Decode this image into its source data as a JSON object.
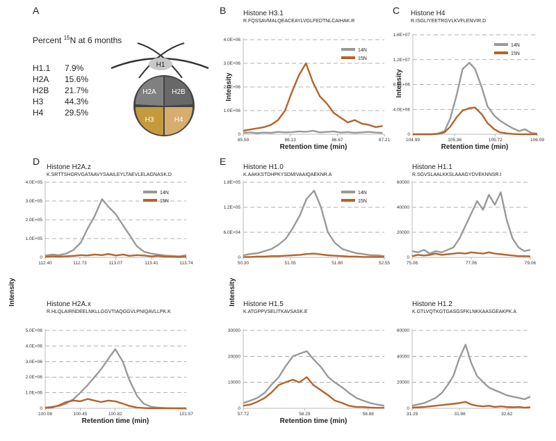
{
  "panel_a": {
    "panel": "A",
    "title": [
      "Percent ",
      "15",
      "N at 6 months"
    ],
    "rows": [
      [
        "H1.1",
        "7.9%"
      ],
      [
        "H2A",
        "15.6%"
      ],
      [
        "H2B",
        "21.7%"
      ],
      [
        "H3",
        "44.3%"
      ],
      [
        "H4",
        "29.5%"
      ]
    ],
    "diagram_labels": [
      "H1",
      "H2A",
      "H2B",
      "H3",
      "H4"
    ]
  },
  "chart_data": [
    {
      "type": "line",
      "panel": "B",
      "title": "Histone H3.1",
      "subtitle": "R.FQSSAVMALQEACEAYLVGLFEDTNLCAIHAK.R",
      "xlabel": "Retention time (min)",
      "ylabel": "Intensity",
      "legend": "upper right",
      "grid": true,
      "xlim": [
        85.59,
        87.21
      ],
      "xticks": [
        85.59,
        86.13,
        86.67,
        87.21
      ],
      "ylim": [
        0,
        4000000
      ],
      "yticks": [
        0,
        {
          "value": 1000000,
          "label": "1.0E+06"
        },
        {
          "value": 2000000,
          "label": "2.0E+06"
        },
        {
          "value": 3000000,
          "label": "3.0E+06"
        },
        {
          "value": 4000000,
          "label": "4.0E+06"
        }
      ],
      "x": [
        85.59,
        85.67,
        85.75,
        85.83,
        85.91,
        85.99,
        86.07,
        86.15,
        86.23,
        86.31,
        86.39,
        86.47,
        86.55,
        86.63,
        86.71,
        86.79,
        86.87,
        86.95,
        87.03,
        87.11,
        87.19
      ],
      "series": [
        {
          "name": "14N",
          "color": "#999999",
          "values": [
            60000,
            80000,
            50000,
            70000,
            60000,
            100000,
            80000,
            90000,
            120000,
            100000,
            150000,
            80000,
            100000,
            120000,
            70000,
            90000,
            60000,
            80000,
            100000,
            70000,
            60000
          ]
        },
        {
          "name": "15N",
          "color": "#b5622a",
          "values": [
            150000,
            200000,
            250000,
            300000,
            400000,
            600000,
            1000000,
            1800000,
            2500000,
            3000000,
            2200000,
            1600000,
            1300000,
            900000,
            700000,
            500000,
            600000,
            450000,
            400000,
            300000,
            350000
          ]
        }
      ]
    },
    {
      "type": "line",
      "panel": "C",
      "title": "Histone H4",
      "subtitle": "R.ISGLIYEETRGVLKVFLENVIR.D",
      "xlabel": "Retention time (min)",
      "ylabel": "Intensity",
      "legend": "upper right",
      "grid": true,
      "xlim": [
        104.99,
        106.09
      ],
      "xticks": [
        104.99,
        105.36,
        105.72,
        106.09
      ],
      "ylim": [
        0,
        16000000
      ],
      "yticks": [
        0,
        {
          "value": 4000000,
          "label": "4.0E+06"
        },
        {
          "value": 8000000,
          "label": "8.0E+06"
        },
        {
          "value": 12000000,
          "label": "1.2E+07"
        },
        {
          "value": 16000000,
          "label": "1.6E+07"
        }
      ],
      "x": [
        104.99,
        105.05,
        105.1,
        105.16,
        105.21,
        105.27,
        105.32,
        105.38,
        105.43,
        105.49,
        105.54,
        105.6,
        105.65,
        105.71,
        105.76,
        105.82,
        105.87,
        105.93,
        105.98,
        106.04,
        106.09
      ],
      "series": [
        {
          "name": "14N",
          "color": "#999999",
          "values": [
            0,
            0,
            0,
            0,
            100000,
            500000,
            2500000,
            6500000,
            10500000,
            11500000,
            10500000,
            7500000,
            4500000,
            3000000,
            2200000,
            1500000,
            1000000,
            500000,
            800000,
            200000,
            100000
          ]
        },
        {
          "name": "15N",
          "color": "#b5622a",
          "values": [
            0,
            0,
            0,
            0,
            50000,
            300000,
            1200000,
            2800000,
            3800000,
            4200000,
            4300000,
            3200000,
            1800000,
            800000,
            300000,
            150000,
            50000,
            0,
            0,
            0,
            0
          ]
        }
      ]
    },
    {
      "type": "line",
      "panel": "D",
      "title": "Histone H2A.z",
      "subtitle": "K.SRTTSHGRVGATAAVYSAAILEYLTAEVLELAGNASK.D",
      "ylabel": "Intensity",
      "legend": "upper right",
      "grid": true,
      "xlim": [
        112.4,
        113.74
      ],
      "xticks": [
        {
          "value": 112.4,
          "label": "112.40"
        },
        112.73,
        113.07,
        113.41,
        113.74
      ],
      "ylim": [
        0,
        400000
      ],
      "yticks": [
        0,
        {
          "value": 100000,
          "label": "1.0E+05"
        },
        {
          "value": 200000,
          "label": "2.0E+05"
        },
        {
          "value": 300000,
          "label": "3.0E+05"
        },
        {
          "value": 400000,
          "label": "4.0E+05"
        }
      ],
      "x": [
        112.4,
        112.47,
        112.53,
        112.6,
        112.67,
        112.74,
        112.8,
        112.87,
        112.94,
        113.0,
        113.07,
        113.14,
        113.2,
        113.27,
        113.34,
        113.41,
        113.47,
        113.54,
        113.61,
        113.67,
        113.74
      ],
      "series": [
        {
          "name": "14N",
          "color": "#999999",
          "values": [
            10000,
            15000,
            12000,
            20000,
            40000,
            80000,
            150000,
            220000,
            310000,
            270000,
            230000,
            170000,
            120000,
            60000,
            30000,
            20000,
            15000,
            10000,
            8000,
            5000,
            12000
          ]
        },
        {
          "name": "15N",
          "color": "#b5622a",
          "values": [
            3000,
            5000,
            4000,
            6000,
            8000,
            12000,
            10000,
            15000,
            12000,
            18000,
            10000,
            15000,
            8000,
            12000,
            10000,
            5000,
            8000,
            4000,
            3000,
            2000,
            3000
          ]
        }
      ]
    },
    {
      "type": "line",
      "title": "Histone H2A.x",
      "subtitle": "R.HLQLAIRNDEELNKLLGGVTIAQGGVLPNIQAVLLPK.K",
      "xlabel": "Retention time (min)",
      "grid": true,
      "xlim": [
        100.08,
        101.57
      ],
      "xticks": [
        100.08,
        100.45,
        100.82,
        101.57
      ],
      "ylim": [
        0,
        5000000
      ],
      "yticks": [
        0,
        {
          "value": 1000000,
          "label": "1.0E+06"
        },
        {
          "value": 2000000,
          "label": "2.0E+06"
        },
        {
          "value": 3000000,
          "label": "3.0E+06"
        },
        {
          "value": 4000000,
          "label": "4.0E+06"
        },
        {
          "value": 5000000,
          "label": "5.0E+06"
        }
      ],
      "x": [
        100.08,
        100.15,
        100.23,
        100.3,
        100.38,
        100.45,
        100.53,
        100.6,
        100.67,
        100.75,
        100.82,
        100.9,
        100.97,
        101.05,
        101.12,
        101.2,
        101.27,
        101.35,
        101.42,
        101.5,
        101.57
      ],
      "series": [
        {
          "color": "#999999",
          "values": [
            50000,
            100000,
            150000,
            300000,
            600000,
            1000000,
            1500000,
            2000000,
            2500000,
            3200000,
            3800000,
            3000000,
            1800000,
            800000,
            300000,
            100000,
            50000,
            20000,
            10000,
            0,
            0
          ]
        },
        {
          "color": "#b5622a",
          "values": [
            20000,
            50000,
            200000,
            400000,
            500000,
            450000,
            600000,
            500000,
            400000,
            500000,
            450000,
            300000,
            150000,
            50000,
            20000,
            0,
            0,
            0,
            0,
            0,
            0
          ]
        }
      ]
    },
    {
      "type": "line",
      "panel": "E",
      "title": "Histone H1.0",
      "subtitle": "K.AAKKSTDHPKYSDMIVAAIQAEKNR.A",
      "ylabel": "Intensity",
      "legend": "upper right",
      "grid": true,
      "xlim": [
        50.3,
        52.55
      ],
      "xticks": [
        {
          "value": 50.3,
          "label": "50.30"
        },
        51.05,
        {
          "value": 51.8,
          "label": "51.80"
        },
        52.55
      ],
      "ylim": [
        0,
        180000
      ],
      "yticks": [
        0,
        {
          "value": 60000,
          "label": "6.0E+04"
        },
        {
          "value": 120000,
          "label": "1.2E+05"
        },
        {
          "value": 180000,
          "label": "1.8E+05"
        }
      ],
      "x": [
        50.3,
        50.41,
        50.53,
        50.64,
        50.75,
        50.86,
        50.98,
        51.09,
        51.2,
        51.31,
        51.43,
        51.54,
        51.65,
        51.76,
        51.88,
        51.99,
        52.1,
        52.21,
        52.33,
        52.44,
        52.55
      ],
      "series": [
        {
          "name": "14N",
          "color": "#999999",
          "values": [
            5000,
            8000,
            10000,
            15000,
            20000,
            30000,
            45000,
            70000,
            100000,
            140000,
            160000,
            120000,
            60000,
            35000,
            20000,
            15000,
            10000,
            8000,
            5000,
            5000,
            3000
          ]
        },
        {
          "name": "15N",
          "color": "#b5622a",
          "values": [
            1000,
            1000,
            2000,
            2000,
            3000,
            3000,
            4000,
            5000,
            6000,
            8000,
            9000,
            7000,
            5000,
            4000,
            3000,
            2000,
            2000,
            1000,
            1000,
            1000,
            1000
          ]
        }
      ]
    },
    {
      "type": "line",
      "title": "Histone H1.1",
      "subtitle": "R.SGVSLAALKKSLAAAGYDVEKNNSR.I",
      "grid": true,
      "xlim": [
        75.06,
        79.06
      ],
      "xticks": [
        75.06,
        77.06,
        79.06
      ],
      "ylim": [
        0,
        60000
      ],
      "yticks": [
        0,
        20000,
        40000,
        60000
      ],
      "x": [
        75.06,
        75.26,
        75.46,
        75.66,
        75.86,
        76.06,
        76.26,
        76.46,
        76.66,
        76.86,
        77.06,
        77.26,
        77.46,
        77.66,
        77.86,
        78.06,
        78.26,
        78.46,
        78.66,
        78.86,
        79.06
      ],
      "series": [
        {
          "color": "#999999",
          "values": [
            5000,
            4000,
            6000,
            3000,
            5000,
            4000,
            6000,
            8000,
            15000,
            25000,
            35000,
            45000,
            38000,
            50000,
            42000,
            52000,
            30000,
            15000,
            8000,
            5000,
            6000
          ]
        },
        {
          "color": "#b5622a",
          "values": [
            1000,
            2000,
            1500,
            2000,
            3000,
            2000,
            2500,
            3000,
            3500,
            3000,
            4000,
            3500,
            3000,
            4000,
            3000,
            2500,
            2000,
            1500,
            1000,
            1000,
            800
          ]
        }
      ]
    },
    {
      "type": "line",
      "title": "Histone H1.5",
      "subtitle": "K.ATGPPVSELITKAVSASK.E",
      "xlabel": "Retention time (min)",
      "grid": true,
      "xlim": [
        57.72,
        59.03
      ],
      "xticks": [
        57.72,
        58.29,
        58.88
      ],
      "ylim": [
        0,
        30000
      ],
      "yticks": [
        0,
        10000,
        20000,
        30000
      ],
      "x": [
        57.72,
        57.79,
        57.85,
        57.92,
        57.98,
        58.05,
        58.11,
        58.18,
        58.24,
        58.31,
        58.37,
        58.44,
        58.51,
        58.57,
        58.64,
        58.7,
        58.77,
        58.83,
        58.9,
        58.96,
        59.03
      ],
      "series": [
        {
          "color": "#999999",
          "values": [
            2000,
            3000,
            4000,
            6000,
            9000,
            12000,
            16000,
            20000,
            21000,
            22000,
            19000,
            16000,
            12000,
            10000,
            8000,
            6000,
            4000,
            3000,
            2000,
            1500,
            1000
          ]
        },
        {
          "color": "#b5622a",
          "values": [
            1000,
            1500,
            2500,
            4000,
            6000,
            9000,
            10000,
            11000,
            10000,
            12000,
            9000,
            7000,
            5000,
            3000,
            2000,
            1000,
            500,
            500,
            300,
            200,
            200
          ]
        }
      ]
    },
    {
      "type": "line",
      "title": "Histone H1.2",
      "subtitle": "K.GTLVQTKGTGASGSFKLNKKAASGEAKPK.A",
      "grid": true,
      "xlim": [
        31.29,
        32.95
      ],
      "xticks": [
        31.29,
        31.96,
        32.62
      ],
      "ylim": [
        0,
        60000
      ],
      "yticks": [
        0,
        20000,
        40000,
        60000
      ],
      "x": [
        31.29,
        31.37,
        31.46,
        31.54,
        31.62,
        31.71,
        31.79,
        31.87,
        31.95,
        32.04,
        32.12,
        32.2,
        32.29,
        32.37,
        32.45,
        32.54,
        32.62,
        32.7,
        32.79,
        32.87,
        32.95
      ],
      "series": [
        {
          "color": "#999999",
          "values": [
            2000,
            3000,
            4000,
            6000,
            8000,
            12000,
            18000,
            25000,
            38000,
            49000,
            35000,
            25000,
            20000,
            16000,
            14000,
            12000,
            10000,
            9000,
            8000,
            7000,
            9000
          ]
        },
        {
          "color": "#b5622a",
          "values": [
            500,
            800,
            1000,
            1500,
            2000,
            2500,
            3000,
            3500,
            4000,
            5000,
            3000,
            2000,
            1500,
            2000,
            1000,
            1500,
            1000,
            800,
            1000,
            500,
            800
          ]
        }
      ]
    }
  ]
}
